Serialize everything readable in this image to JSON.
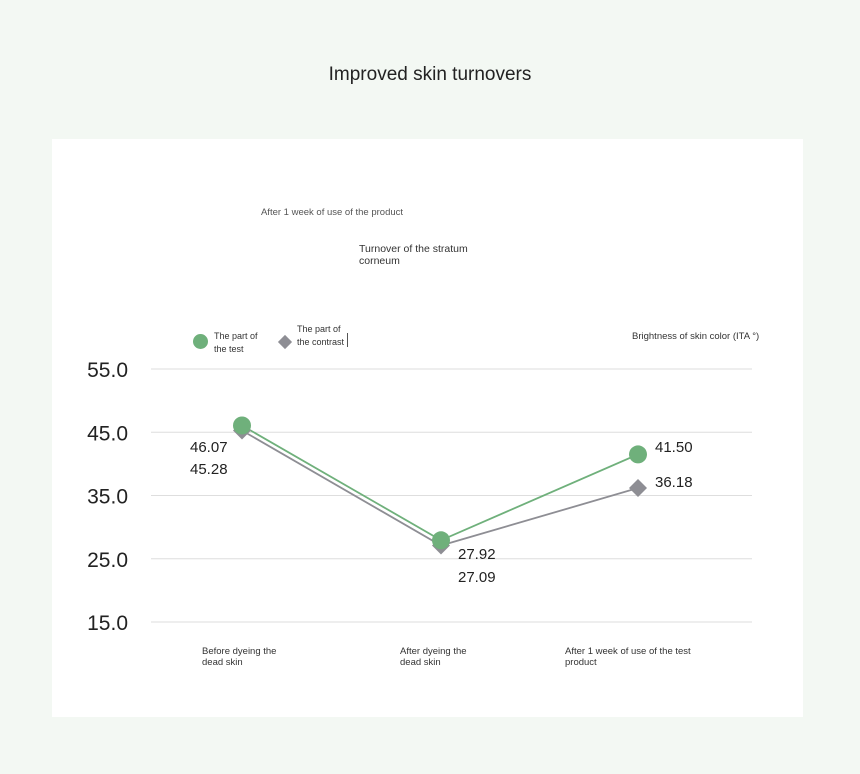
{
  "page": {
    "title": "Improved skin turnovers"
  },
  "chart_data": {
    "type": "line",
    "subtitle": "After 1 week of use of the product",
    "caption": "Turnover of the stratum corneum",
    "ylabel": "Brightness of skin color (ITA °)",
    "categories": [
      "Before dyeing the dead skin",
      "After dyeing the dead skin",
      "After 1 week of use of the test product"
    ],
    "yticks": [
      "55.0",
      "45.0",
      "35.0",
      "25.0",
      "15.0"
    ],
    "ylim": [
      15,
      55
    ],
    "grid": true,
    "legend_position": "top-left",
    "series": [
      {
        "name": "The part of the test",
        "marker": "circle",
        "color": "#6fb07b",
        "values": [
          46.07,
          27.92,
          41.5
        ],
        "labels": [
          "46.07",
          "27.92",
          "41.50"
        ]
      },
      {
        "name": "The part of the contrast",
        "marker": "diamond",
        "color": "#8e8e94",
        "values": [
          45.28,
          27.09,
          36.18
        ],
        "labels": [
          "45.28",
          "27.09",
          "36.18"
        ]
      }
    ]
  }
}
